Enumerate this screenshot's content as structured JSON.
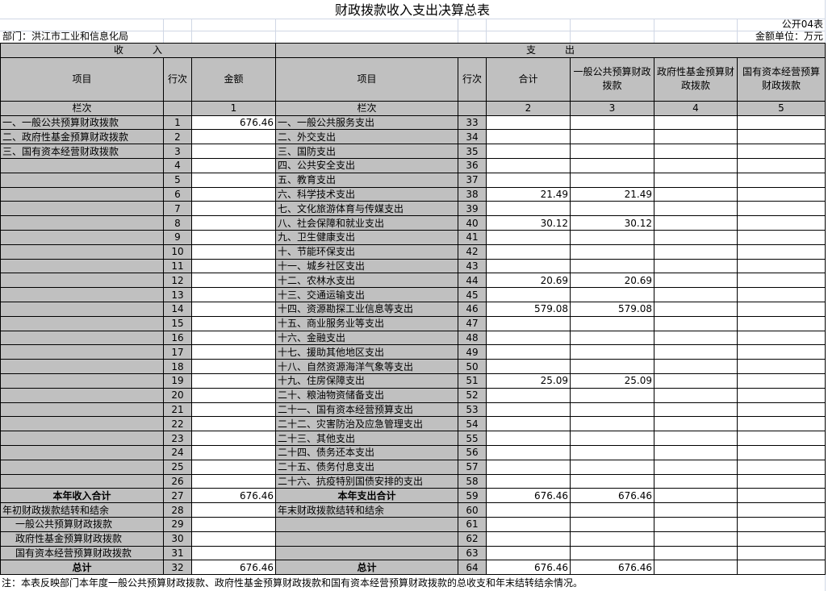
{
  "title": "财政拨款收入支出决算总表",
  "form_no": "公开04表",
  "department": "部门：洪江市工业和信息化局",
  "unit": "金额单位：万元",
  "income_header": "收　　　入",
  "expense_header": "支　　　出",
  "columns": {
    "item": "项目",
    "row_no": "行次",
    "amount": "金额",
    "exp_item": "项目",
    "exp_row_no": "行次",
    "total": "合计",
    "general": "一般公共预算财政拨款",
    "fund": "政府性基金预算财政拨款",
    "state": "国有资本经营预算财政拨款"
  },
  "col_index": {
    "label": "栏次",
    "c1": "1",
    "label2": "栏次",
    "c2": "2",
    "c3": "3",
    "c4": "4",
    "c5": "5"
  },
  "rows": [
    {
      "in_item": "一、一般公共预算财政拨款",
      "in_no": "1",
      "in_amt": "676.46",
      "ex_item": "一、一般公共服务支出",
      "ex_no": "33",
      "total": "",
      "general": "",
      "fund": "",
      "state": ""
    },
    {
      "in_item": "二、政府性基金预算财政拨款",
      "in_no": "2",
      "in_amt": "",
      "ex_item": "二、外交支出",
      "ex_no": "34",
      "total": "",
      "general": "",
      "fund": "",
      "state": ""
    },
    {
      "in_item": "三、国有资本经营财政拨款",
      "in_no": "3",
      "in_amt": "",
      "ex_item": "三、国防支出",
      "ex_no": "35",
      "total": "",
      "general": "",
      "fund": "",
      "state": ""
    },
    {
      "in_item": "",
      "in_no": "4",
      "in_amt": "",
      "ex_item": "四、公共安全支出",
      "ex_no": "36",
      "total": "",
      "general": "",
      "fund": "",
      "state": ""
    },
    {
      "in_item": "",
      "in_no": "5",
      "in_amt": "",
      "ex_item": "五、教育支出",
      "ex_no": "37",
      "total": "",
      "general": "",
      "fund": "",
      "state": ""
    },
    {
      "in_item": "",
      "in_no": "6",
      "in_amt": "",
      "ex_item": "六、科学技术支出",
      "ex_no": "38",
      "total": "21.49",
      "general": "21.49",
      "fund": "",
      "state": ""
    },
    {
      "in_item": "",
      "in_no": "7",
      "in_amt": "",
      "ex_item": "七、文化旅游体育与传媒支出",
      "ex_no": "39",
      "total": "",
      "general": "",
      "fund": "",
      "state": ""
    },
    {
      "in_item": "",
      "in_no": "8",
      "in_amt": "",
      "ex_item": "八、社会保障和就业支出",
      "ex_no": "40",
      "total": "30.12",
      "general": "30.12",
      "fund": "",
      "state": ""
    },
    {
      "in_item": "",
      "in_no": "9",
      "in_amt": "",
      "ex_item": "九、卫生健康支出",
      "ex_no": "41",
      "total": "",
      "general": "",
      "fund": "",
      "state": ""
    },
    {
      "in_item": "",
      "in_no": "10",
      "in_amt": "",
      "ex_item": "十、节能环保支出",
      "ex_no": "42",
      "total": "",
      "general": "",
      "fund": "",
      "state": ""
    },
    {
      "in_item": "",
      "in_no": "11",
      "in_amt": "",
      "ex_item": "十一、城乡社区支出",
      "ex_no": "43",
      "total": "",
      "general": "",
      "fund": "",
      "state": ""
    },
    {
      "in_item": "",
      "in_no": "12",
      "in_amt": "",
      "ex_item": "十二、农林水支出",
      "ex_no": "44",
      "total": "20.69",
      "general": "20.69",
      "fund": "",
      "state": ""
    },
    {
      "in_item": "",
      "in_no": "13",
      "in_amt": "",
      "ex_item": "十三、交通运输支出",
      "ex_no": "45",
      "total": "",
      "general": "",
      "fund": "",
      "state": ""
    },
    {
      "in_item": "",
      "in_no": "14",
      "in_amt": "",
      "ex_item": "十四、资源勘探工业信息等支出",
      "ex_no": "46",
      "total": "579.08",
      "general": "579.08",
      "fund": "",
      "state": ""
    },
    {
      "in_item": "",
      "in_no": "15",
      "in_amt": "",
      "ex_item": "十五、商业服务业等支出",
      "ex_no": "47",
      "total": "",
      "general": "",
      "fund": "",
      "state": ""
    },
    {
      "in_item": "",
      "in_no": "16",
      "in_amt": "",
      "ex_item": "十六、金融支出",
      "ex_no": "48",
      "total": "",
      "general": "",
      "fund": "",
      "state": ""
    },
    {
      "in_item": "",
      "in_no": "17",
      "in_amt": "",
      "ex_item": "十七、援助其他地区支出",
      "ex_no": "49",
      "total": "",
      "general": "",
      "fund": "",
      "state": ""
    },
    {
      "in_item": "",
      "in_no": "18",
      "in_amt": "",
      "ex_item": "十八、自然资源海洋气象等支出",
      "ex_no": "50",
      "total": "",
      "general": "",
      "fund": "",
      "state": ""
    },
    {
      "in_item": "",
      "in_no": "19",
      "in_amt": "",
      "ex_item": "十九、住房保障支出",
      "ex_no": "51",
      "total": "25.09",
      "general": "25.09",
      "fund": "",
      "state": ""
    },
    {
      "in_item": "",
      "in_no": "20",
      "in_amt": "",
      "ex_item": "二十、粮油物资储备支出",
      "ex_no": "52",
      "total": "",
      "general": "",
      "fund": "",
      "state": ""
    },
    {
      "in_item": "",
      "in_no": "21",
      "in_amt": "",
      "ex_item": "二十一、国有资本经营预算支出",
      "ex_no": "53",
      "total": "",
      "general": "",
      "fund": "",
      "state": ""
    },
    {
      "in_item": "",
      "in_no": "22",
      "in_amt": "",
      "ex_item": "二十二、灾害防治及应急管理支出",
      "ex_no": "54",
      "total": "",
      "general": "",
      "fund": "",
      "state": ""
    },
    {
      "in_item": "",
      "in_no": "23",
      "in_amt": "",
      "ex_item": "二十三、其他支出",
      "ex_no": "55",
      "total": "",
      "general": "",
      "fund": "",
      "state": ""
    },
    {
      "in_item": "",
      "in_no": "24",
      "in_amt": "",
      "ex_item": "二十四、债务还本支出",
      "ex_no": "56",
      "total": "",
      "general": "",
      "fund": "",
      "state": ""
    },
    {
      "in_item": "",
      "in_no": "25",
      "in_amt": "",
      "ex_item": "二十五、债务付息支出",
      "ex_no": "57",
      "total": "",
      "general": "",
      "fund": "",
      "state": ""
    },
    {
      "in_item": "",
      "in_no": "26",
      "in_amt": "",
      "ex_item": "二十六、抗疫特别国债安排的支出",
      "ex_no": "58",
      "total": "",
      "general": "",
      "fund": "",
      "state": ""
    },
    {
      "in_item": "本年收入合计",
      "in_no": "27",
      "in_amt": "676.46",
      "ex_item": "本年支出合计",
      "ex_no": "59",
      "total": "676.46",
      "general": "676.46",
      "fund": "",
      "state": "",
      "bold": true
    },
    {
      "in_item": "年初财政拨款结转和结余",
      "in_no": "28",
      "in_amt": "",
      "ex_item": "年末财政拨款结转和结余",
      "ex_no": "60",
      "total": "",
      "general": "",
      "fund": "",
      "state": ""
    },
    {
      "in_item": "一般公共预算财政拨款",
      "in_no": "29",
      "in_amt": "",
      "ex_item": "",
      "ex_no": "61",
      "total": "",
      "general": "",
      "fund": "",
      "state": "",
      "indent": true
    },
    {
      "in_item": "政府性基金预算财政拨款",
      "in_no": "30",
      "in_amt": "",
      "ex_item": "",
      "ex_no": "62",
      "total": "",
      "general": "",
      "fund": "",
      "state": "",
      "indent": true
    },
    {
      "in_item": "国有资本经营预算财政拨款",
      "in_no": "31",
      "in_amt": "",
      "ex_item": "",
      "ex_no": "63",
      "total": "",
      "general": "",
      "fund": "",
      "state": "",
      "indent": true
    },
    {
      "in_item": "总计",
      "in_no": "32",
      "in_amt": "676.46",
      "ex_item": "总计",
      "ex_no": "64",
      "total": "676.46",
      "general": "676.46",
      "fund": "",
      "state": "",
      "bold": true
    }
  ],
  "note": "注：本表反映部门本年度一般公共预算财政拨款、政府性基金预算财政拨款和国有资本经营预算财政拨款的总收支和年末结转结余情况。",
  "colors": {
    "header_bg": "#c0c0c0",
    "grid": "#d0d7e5"
  }
}
